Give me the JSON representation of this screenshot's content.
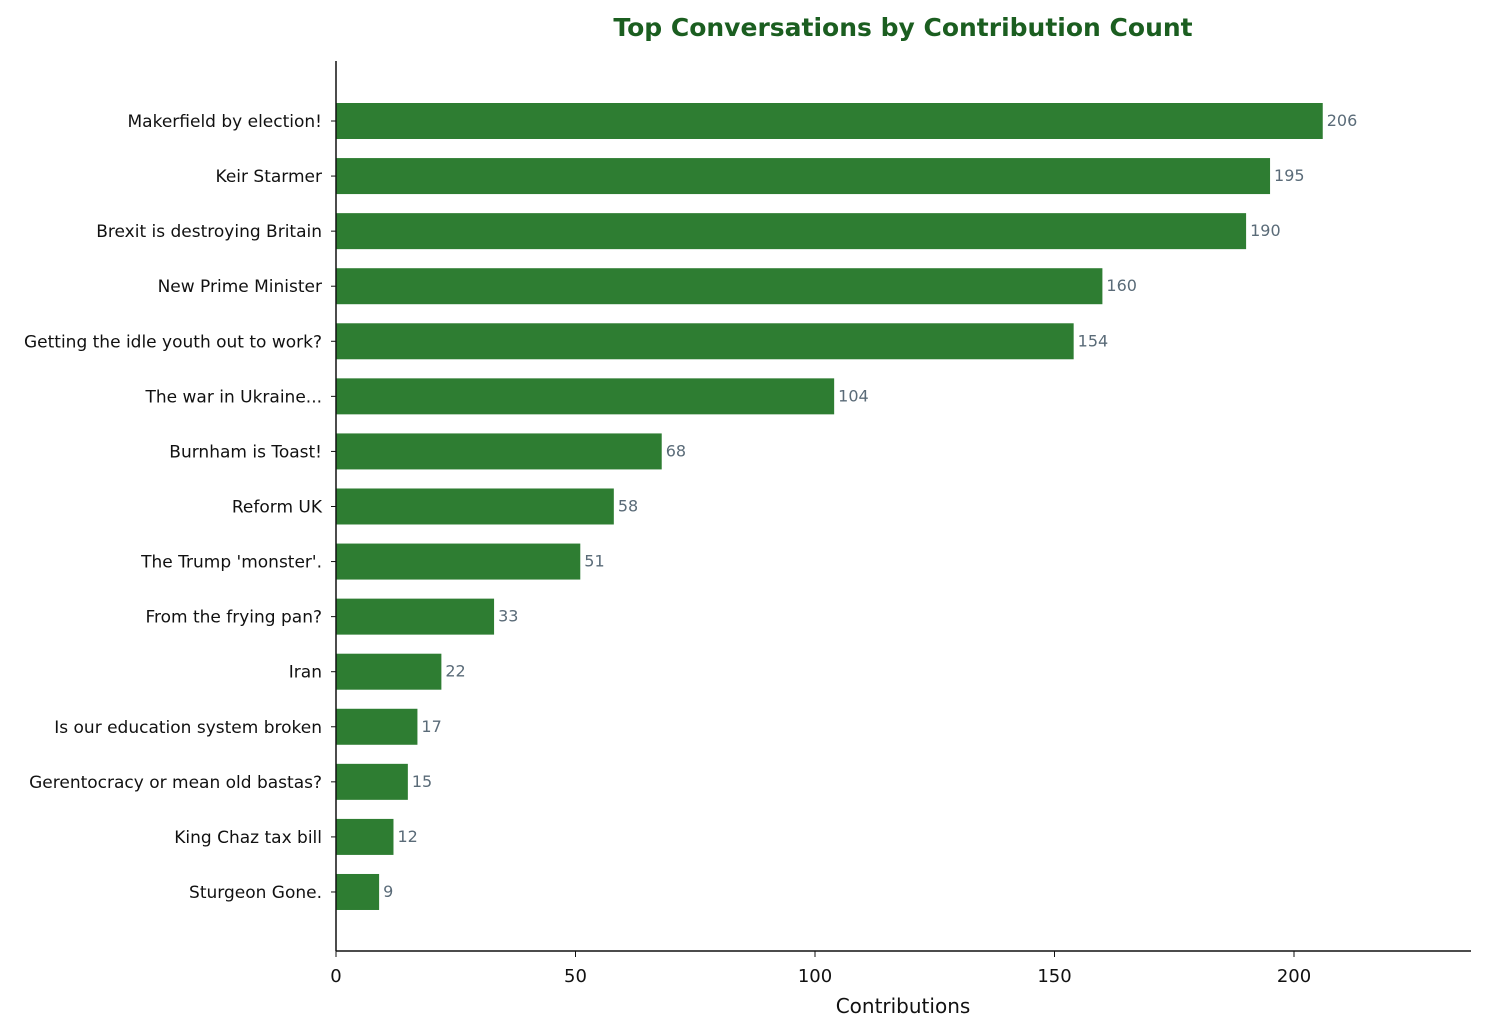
{
  "chart_data": {
    "type": "bar",
    "orientation": "horizontal",
    "title": "Top Conversations by Contribution Count",
    "xlabel": "Contributions",
    "ylabel": "",
    "xlim": [
      0,
      237
    ],
    "xticks": [
      "0",
      "50",
      "100",
      "150",
      "200"
    ],
    "grid": false,
    "categories": [
      "Makerfield by election!",
      "Keir Starmer",
      "Brexit is destroying Britain",
      "New Prime Minister",
      "Getting the idle youth out to work?",
      "The war in Ukraine...",
      "Burnham is Toast!",
      "Reform UK",
      "The Trump 'monster'.",
      "From the frying pan?",
      "Iran",
      "Is our education system broken",
      "Gerentocracy or mean old bastas?",
      "King Chaz tax bill",
      "Sturgeon Gone."
    ],
    "values": [
      206,
      195,
      190,
      160,
      154,
      104,
      68,
      58,
      51,
      33,
      22,
      17,
      15,
      12,
      9
    ],
    "colors": {
      "bar": "#2e7d32",
      "title": "#1b5e20",
      "value_label": "#5a6b78",
      "axis": "#111111"
    }
  }
}
